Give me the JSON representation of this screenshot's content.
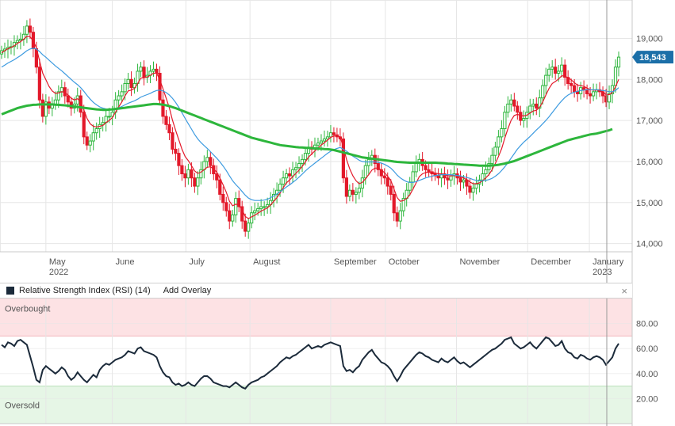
{
  "chart_data": [
    {
      "type": "candlestick",
      "title": "",
      "last_price": 18543,
      "last_price_label": "18,543",
      "ylim": [
        13800,
        19800
      ],
      "y_ticks": [
        14000,
        15000,
        16000,
        17000,
        18000,
        19000
      ],
      "y_tick_labels": [
        "14,000",
        "15,000",
        "16,000",
        "17,000",
        "18,000",
        "19,000"
      ],
      "x_tick_labels": [
        "May",
        "June",
        "July",
        "August",
        "September",
        "October",
        "November",
        "December",
        "January"
      ],
      "x_tick_sublabels": [
        "2022",
        "",
        "",
        "",
        "",
        "",
        "",
        "",
        "2023"
      ],
      "grid": true,
      "closes": [
        18700,
        18740,
        18780,
        18800,
        18900,
        18950,
        18980,
        19100,
        19300,
        19150,
        18750,
        18300,
        17500,
        17100,
        17450,
        17300,
        17400,
        17500,
        17700,
        17800,
        17600,
        17450,
        17300,
        17400,
        17600,
        17200,
        16600,
        16400,
        16500,
        16700,
        16800,
        16900,
        16950,
        17100,
        17100,
        17200,
        17500,
        17600,
        17700,
        17900,
        18000,
        17800,
        17900,
        18200,
        18300,
        18050,
        18100,
        18200,
        18250,
        18150,
        17500,
        17100,
        16900,
        16700,
        16300,
        16200,
        15900,
        15700,
        15600,
        15800,
        15600,
        15400,
        15600,
        15800,
        16000,
        16100,
        15900,
        15700,
        15550,
        15200,
        15000,
        14800,
        14550,
        14700,
        15100,
        14900,
        14550,
        14300,
        14500,
        14750,
        14800,
        14850,
        14900,
        14900,
        14950,
        15050,
        15200,
        15300,
        15450,
        15600,
        15700,
        15650,
        15800,
        15850,
        15950,
        16050,
        16200,
        16350,
        16300,
        16400,
        16450,
        16500,
        16550,
        16600,
        16700,
        16650,
        16600,
        16550,
        15600,
        15150,
        15300,
        15200,
        15250,
        15350,
        15600,
        15900,
        16050,
        16150,
        15950,
        15800,
        15650,
        15600,
        15400,
        15200,
        14750,
        14550,
        14800,
        15100,
        15300,
        15500,
        15750,
        15950,
        16050,
        15900,
        15800,
        15750,
        15700,
        15650,
        15600,
        15700,
        15600,
        15550,
        15650,
        15700,
        15600,
        15500,
        15550,
        15400,
        15250,
        15350,
        15450,
        15550,
        15700,
        15800,
        15950,
        16150,
        16350,
        16600,
        16800,
        17200,
        17400,
        17500,
        17350,
        17200,
        17000,
        17050,
        17200,
        17350,
        17400,
        17300,
        17550,
        17850,
        18100,
        18250,
        18300,
        18150,
        18200,
        18350,
        18050,
        17900,
        17850,
        17700,
        17650,
        17800,
        17750,
        17650,
        17600,
        17700,
        17750,
        17700,
        17600,
        17450,
        17650,
        17850,
        18300,
        18543
      ],
      "series": [
        {
          "name": "",
          "color": "#e3192a",
          "values": [
            18650,
            18700,
            18750,
            18780,
            18820,
            18880,
            18920,
            18980,
            19050,
            19040,
            18940,
            18770,
            18450,
            18150,
            17990,
            17830,
            17720,
            17660,
            17670,
            17700,
            17680,
            17620,
            17540,
            17500,
            17530,
            17450,
            17260,
            17050,
            16920,
            16860,
            16840,
            16860,
            16880,
            16950,
            17000,
            17070,
            17200,
            17330,
            17450,
            17600,
            17720,
            17740,
            17780,
            17900,
            18030,
            18040,
            18060,
            18100,
            18150,
            18150,
            17990,
            17770,
            17540,
            17310,
            17010,
            16760,
            16530,
            16300,
            16120,
            16020,
            15900,
            15770,
            15710,
            15740,
            15800,
            15860,
            15870,
            15820,
            15740,
            15590,
            15430,
            15250,
            15030,
            14920,
            14960,
            14940,
            14820,
            14660,
            14610,
            14650,
            14690,
            14740,
            14790,
            14830,
            14870,
            14940,
            15030,
            15120,
            15230,
            15360,
            15480,
            15550,
            15630,
            15710,
            15790,
            15880,
            15990,
            16110,
            16180,
            16260,
            16330,
            16400,
            16460,
            16520,
            16590,
            16620,
            16620,
            16600,
            16350,
            16050,
            15820,
            15650,
            15530,
            15460,
            15490,
            15580,
            15680,
            15790,
            15840,
            15840,
            15790,
            15730,
            15640,
            15540,
            15330,
            15120,
            15030,
            15050,
            15100,
            15190,
            15330,
            15480,
            15630,
            15700,
            15730,
            15740,
            15730,
            15720,
            15700,
            15700,
            15680,
            15650,
            15650,
            15660,
            15650,
            15620,
            15600,
            15560,
            15500,
            15460,
            15460,
            15480,
            15530,
            15600,
            15680,
            15800,
            15950,
            16120,
            16310,
            16570,
            16800,
            17000,
            17120,
            17150,
            17120,
            17110,
            17130,
            17180,
            17230,
            17250,
            17320,
            17450,
            17620,
            17780,
            17900,
            17950,
            18010,
            18090,
            18080,
            18040,
            17990,
            17920,
            17860,
            17850,
            17830,
            17790,
            17750,
            17740,
            17740,
            17730,
            17700,
            17630,
            17630,
            17680,
            17820,
            18000
          ]
        },
        {
          "name": "",
          "color": "#3d9be0",
          "values": [
            18300,
            18350,
            18400,
            18440,
            18480,
            18530,
            18580,
            18640,
            18700,
            18740,
            18760,
            18740,
            18680,
            18600,
            18540,
            18470,
            18400,
            18330,
            18270,
            18210,
            18140,
            18070,
            18000,
            17930,
            17870,
            17800,
            17710,
            17610,
            17520,
            17440,
            17380,
            17330,
            17300,
            17280,
            17270,
            17270,
            17290,
            17310,
            17340,
            17380,
            17420,
            17450,
            17480,
            17520,
            17570,
            17600,
            17630,
            17660,
            17700,
            17730,
            17740,
            17720,
            17680,
            17620,
            17540,
            17440,
            17320,
            17190,
            17050,
            16920,
            16790,
            16660,
            16550,
            16460,
            16390,
            16320,
            16240,
            16160,
            16080,
            15990,
            15890,
            15780,
            15650,
            15530,
            15440,
            15360,
            15270,
            15180,
            15110,
            15070,
            15050,
            15050,
            15050,
            15060,
            15080,
            15120,
            15160,
            15210,
            15260,
            15320,
            15380,
            15430,
            15490,
            15550,
            15620,
            15690,
            15770,
            15840,
            15900,
            15960,
            16020,
            16080,
            16140,
            16200,
            16250,
            16290,
            16320,
            16340,
            16300,
            16250,
            16190,
            16130,
            16080,
            16030,
            16000,
            15990,
            15990,
            15990,
            15990,
            15980,
            15960,
            15930,
            15890,
            15840,
            15760,
            15670,
            15600,
            15550,
            15510,
            15490,
            15490,
            15510,
            15540,
            15570,
            15600,
            15620,
            15640,
            15660,
            15670,
            15680,
            15680,
            15680,
            15680,
            15670,
            15660,
            15650,
            15630,
            15610,
            15590,
            15560,
            15540,
            15530,
            15530,
            15540,
            15560,
            15590,
            15640,
            15700,
            15780,
            15870,
            15970,
            16080,
            16190,
            16300,
            16390,
            16470,
            16540,
            16610,
            16690,
            16770,
            16840,
            16920,
            17000,
            17090,
            17190,
            17290,
            17390,
            17480,
            17560,
            17620,
            17660,
            17690,
            17710,
            17730,
            17740,
            17750,
            17750,
            17750,
            17750,
            17740,
            17730,
            17720,
            17700,
            17700,
            17730,
            17800
          ]
        },
        {
          "name": "",
          "color": "#2db63c",
          "values": [
            17150,
            17180,
            17210,
            17240,
            17270,
            17300,
            17320,
            17340,
            17360,
            17370,
            17380,
            17385,
            17390,
            17390,
            17390,
            17390,
            17390,
            17385,
            17380,
            17375,
            17370,
            17360,
            17350,
            17340,
            17330,
            17320,
            17310,
            17300,
            17290,
            17280,
            17270,
            17265,
            17260,
            17260,
            17265,
            17270,
            17280,
            17290,
            17300,
            17310,
            17320,
            17330,
            17340,
            17350,
            17360,
            17370,
            17380,
            17390,
            17400,
            17400,
            17395,
            17385,
            17370,
            17350,
            17325,
            17300,
            17270,
            17240,
            17210,
            17180,
            17150,
            17120,
            17090,
            17060,
            17030,
            17000,
            16970,
            16940,
            16910,
            16880,
            16850,
            16820,
            16790,
            16760,
            16730,
            16700,
            16670,
            16640,
            16610,
            16580,
            16560,
            16540,
            16520,
            16500,
            16480,
            16460,
            16440,
            16420,
            16400,
            16390,
            16380,
            16370,
            16360,
            16350,
            16345,
            16340,
            16335,
            16330,
            16325,
            16320,
            16315,
            16310,
            16305,
            16300,
            16290,
            16280,
            16260,
            16240,
            16220,
            16200,
            16180,
            16160,
            16140,
            16120,
            16100,
            16090,
            16080,
            16070,
            16060,
            16050,
            16040,
            16030,
            16020,
            16010,
            16000,
            15990,
            15985,
            15980,
            15975,
            15970,
            15970,
            15970,
            15970,
            15970,
            15970,
            15970,
            15970,
            15970,
            15965,
            15960,
            15955,
            15950,
            15945,
            15940,
            15935,
            15930,
            15925,
            15920,
            15915,
            15910,
            15905,
            15900,
            15900,
            15900,
            15900,
            15905,
            15910,
            15920,
            15935,
            15950,
            15970,
            15990,
            16010,
            16040,
            16070,
            16100,
            16130,
            16160,
            16190,
            16220,
            16250,
            16280,
            16310,
            16340,
            16370,
            16400,
            16430,
            16460,
            16490,
            16520,
            16540,
            16560,
            16580,
            16600,
            16620,
            16640,
            16660,
            16670,
            16680,
            16700,
            16720,
            16740,
            16760,
            16790
          ]
        }
      ]
    },
    {
      "type": "line",
      "title": "Relative Strength Index (RSI) (14)",
      "ylim": [
        0,
        100
      ],
      "y_ticks": [
        20,
        40,
        60,
        80
      ],
      "y_tick_labels": [
        "20.00",
        "40.00",
        "60.00",
        "80.00"
      ],
      "overbought_label": "Overbought",
      "oversold_label": "Oversold",
      "overbought_level": 70,
      "oversold_level": 30,
      "series": [
        {
          "name": "",
          "color": "#1b2a3a",
          "values": [
            63,
            61,
            65,
            64,
            62,
            66,
            67,
            65,
            63,
            54,
            45,
            35,
            33,
            43,
            46,
            44,
            42,
            40,
            42,
            45,
            43,
            38,
            35,
            37,
            41,
            38,
            35,
            33,
            36,
            39,
            37,
            43,
            46,
            48,
            47,
            49,
            51,
            52,
            53,
            55,
            58,
            57,
            56,
            60,
            61,
            58,
            57,
            56,
            55,
            53,
            46,
            41,
            38,
            37,
            33,
            31,
            32,
            30,
            31,
            33,
            31,
            30,
            33,
            36,
            38,
            38,
            36,
            33,
            32,
            31,
            30,
            30,
            29,
            31,
            33,
            31,
            29,
            28,
            31,
            33,
            34,
            35,
            37,
            38,
            40,
            42,
            44,
            46,
            49,
            51,
            53,
            52,
            54,
            55,
            57,
            59,
            61,
            63,
            60,
            61,
            62,
            61,
            63,
            64,
            65,
            64,
            63,
            62,
            46,
            42,
            43,
            41,
            44,
            46,
            51,
            54,
            57,
            59,
            55,
            52,
            49,
            48,
            46,
            43,
            38,
            34,
            38,
            43,
            46,
            49,
            52,
            55,
            57,
            56,
            54,
            53,
            51,
            50,
            49,
            52,
            50,
            49,
            51,
            53,
            50,
            48,
            49,
            47,
            45,
            47,
            49,
            51,
            53,
            55,
            57,
            59,
            60,
            62,
            64,
            67,
            68,
            69,
            64,
            62,
            60,
            61,
            63,
            65,
            62,
            60,
            63,
            66,
            69,
            68,
            65,
            62,
            63,
            66,
            60,
            57,
            56,
            53,
            52,
            55,
            54,
            52,
            51,
            53,
            54,
            53,
            51,
            47,
            50,
            53,
            60,
            64
          ]
        }
      ]
    }
  ],
  "rsi_panel": {
    "title": "Relative Strength Index (RSI) (14)",
    "add_overlay": "Add Overlay",
    "close": "×"
  },
  "colors": {
    "up": "#2db63c",
    "down": "#e3192a",
    "price_tag": "#1b6fa8",
    "grid": "#e6e6e6",
    "overbought_fill": "#fde2e4",
    "oversold_fill": "#e6f6e6"
  }
}
